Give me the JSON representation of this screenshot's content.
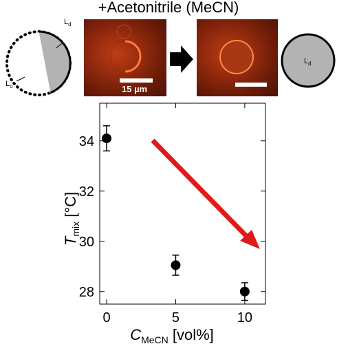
{
  "header": {
    "title": "+Acetonitrile (MeCN)"
  },
  "left_diagram": {
    "phase_ld": "L",
    "phase_ld_sub": "d",
    "phase_lo": "L",
    "phase_lo_sub": "o"
  },
  "micrograph_left": {
    "scale_label": "15 µm"
  },
  "right_diagram": {
    "phase_ld": "L",
    "phase_ld_sub": "d"
  },
  "colors": {
    "ld_fill": "#b3b3b3",
    "arrow": "#e01a1a",
    "marker": "#000000"
  },
  "chart_data": {
    "type": "scatter",
    "x": [
      0,
      5,
      10
    ],
    "y": [
      34.1,
      29.05,
      28.0
    ],
    "yerr": [
      0.5,
      0.4,
      0.35
    ],
    "xlim": [
      -0.5,
      11.5
    ],
    "ylim": [
      27.5,
      35.5
    ],
    "xticks": [
      "0",
      "5",
      "10"
    ],
    "yticks": [
      "28",
      "30",
      "32",
      "34"
    ],
    "xlabel_main": "C",
    "xlabel_sub": "MeCN",
    "xlabel_unit": " [vol%]",
    "ylabel_main": "T",
    "ylabel_sub": "mix",
    "ylabel_unit": " [°C]",
    "trend_arrow": "decreasing"
  }
}
